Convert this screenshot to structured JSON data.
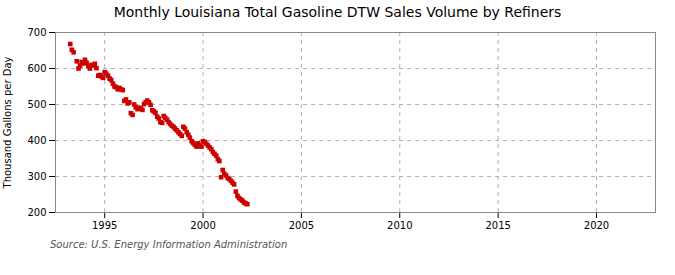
{
  "chart_data": {
    "type": "scatter",
    "title": "Monthly Louisiana Total Gasoline DTW Sales Volume by Refiners",
    "ylabel": "Thousand Gallons per Day",
    "annotations": [
      "Source: U.S. Energy Information Administration"
    ],
    "color": "#cc0000",
    "marker": "square",
    "grid": true,
    "xlim": [
      1992.5,
      2023.0
    ],
    "ylim": [
      200,
      700
    ],
    "xticks": [
      1995,
      2000,
      2005,
      2010,
      2015,
      2020
    ],
    "yticks": [
      200,
      300,
      400,
      500,
      600,
      700
    ],
    "x": [
      1993.25,
      1993.33,
      1993.42,
      1993.58,
      1993.67,
      1993.75,
      1993.83,
      1993.92,
      1994.0,
      1994.08,
      1994.17,
      1994.25,
      1994.33,
      1994.42,
      1994.5,
      1994.58,
      1994.67,
      1994.75,
      1994.83,
      1994.92,
      1995.0,
      1995.08,
      1995.17,
      1995.25,
      1995.33,
      1995.42,
      1995.5,
      1995.58,
      1995.67,
      1995.75,
      1995.83,
      1995.92,
      1996.0,
      1996.08,
      1996.17,
      1996.25,
      1996.33,
      1996.42,
      1996.5,
      1996.58,
      1996.67,
      1996.75,
      1996.83,
      1996.92,
      1997.0,
      1997.08,
      1997.17,
      1997.25,
      1997.33,
      1997.42,
      1997.5,
      1997.58,
      1997.67,
      1997.75,
      1997.83,
      1997.92,
      1998.0,
      1998.08,
      1998.17,
      1998.25,
      1998.33,
      1998.42,
      1998.5,
      1998.58,
      1998.67,
      1998.75,
      1998.83,
      1998.92,
      1999.0,
      1999.08,
      1999.17,
      1999.25,
      1999.33,
      1999.42,
      1999.5,
      1999.58,
      1999.67,
      1999.75,
      1999.83,
      1999.92,
      2000.0,
      2000.08,
      2000.17,
      2000.25,
      2000.33,
      2000.42,
      2000.5,
      2000.58,
      2000.67,
      2000.75,
      2000.83,
      2000.92,
      2001.0,
      2001.08,
      2001.17,
      2001.25,
      2001.33,
      2001.42,
      2001.5,
      2001.58,
      2001.67,
      2001.75,
      2001.83,
      2001.92,
      2002.0,
      2002.08,
      2002.17,
      2002.25
    ],
    "values": [
      668,
      652,
      645,
      620,
      600,
      608,
      618,
      614,
      624,
      616,
      606,
      600,
      610,
      608,
      613,
      601,
      580,
      582,
      578,
      574,
      590,
      586,
      580,
      572,
      568,
      558,
      550,
      548,
      542,
      546,
      542,
      540,
      510,
      514,
      503,
      506,
      476,
      471,
      500,
      492,
      487,
      491,
      489,
      485,
      501,
      506,
      511,
      506,
      499,
      484,
      481,
      477,
      466,
      461,
      451,
      449,
      468,
      463,
      458,
      451,
      446,
      441,
      438,
      433,
      428,
      423,
      418,
      413,
      438,
      433,
      423,
      416,
      408,
      398,
      393,
      388,
      383,
      392,
      386,
      383,
      398,
      396,
      391,
      386,
      381,
      376,
      368,
      363,
      358,
      348,
      343,
      298,
      318,
      308,
      303,
      296,
      293,
      288,
      283,
      278,
      258,
      246,
      240,
      236,
      233,
      228,
      225,
      223
    ]
  }
}
